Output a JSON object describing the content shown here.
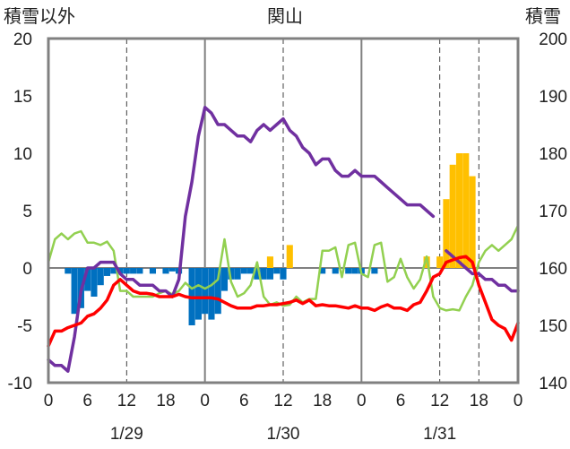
{
  "chart_data": {
    "type": "bar+line",
    "title": "関山",
    "left_axis": {
      "label": "積雪以外",
      "range": [
        -10,
        20
      ],
      "ticks": [
        "20",
        "15",
        "10",
        "5",
        "0",
        "-5",
        "-10"
      ],
      "values": [
        20,
        15,
        10,
        5,
        0,
        -5,
        -10
      ]
    },
    "right_axis": {
      "label": "積雪",
      "range": [
        140,
        200
      ],
      "ticks": [
        "200",
        "190",
        "180",
        "170",
        "160",
        "150",
        "140"
      ],
      "values": [
        200,
        190,
        180,
        170,
        160,
        150,
        140
      ]
    },
    "x_ticks": [
      {
        "h": 0,
        "label": "0"
      },
      {
        "h": 6,
        "label": "6"
      },
      {
        "h": 12,
        "label": "12"
      },
      {
        "h": 18,
        "label": "18"
      },
      {
        "h": 24,
        "label": "0"
      },
      {
        "h": 30,
        "label": "6"
      },
      {
        "h": 36,
        "label": "12"
      },
      {
        "h": 42,
        "label": "18"
      },
      {
        "h": 48,
        "label": "0"
      },
      {
        "h": 54,
        "label": "6"
      },
      {
        "h": 60,
        "label": "12"
      },
      {
        "h": 66,
        "label": "18"
      },
      {
        "h": 72,
        "label": "0"
      }
    ],
    "dates": [
      {
        "h": 12,
        "label": "1/29"
      },
      {
        "h": 36,
        "label": "1/30"
      },
      {
        "h": 60,
        "label": "1/31"
      }
    ],
    "x_range": [
      0,
      72
    ],
    "grid": {
      "vertical_dashed_hours": [
        12,
        36,
        60,
        66
      ],
      "vertical_solid_hours": [
        24,
        48
      ],
      "horizontal_zero_line": true
    },
    "colors": {
      "temperature": "#ff0000",
      "snow_depth": "#7030a0",
      "wind": "#92d050",
      "snow_change_negative": "#0070c0",
      "snow_change_positive": "#ffc000",
      "frame": "#808080"
    },
    "series": [
      {
        "key": "snow_change",
        "type": "bar",
        "axis": "left",
        "values": [
          [
            3,
            -0.5
          ],
          [
            4,
            -4
          ],
          [
            5,
            -3.5
          ],
          [
            6,
            -2
          ],
          [
            7,
            -2.5
          ],
          [
            8,
            -1.5
          ],
          [
            9,
            -0.7
          ],
          [
            10,
            -0.5
          ],
          [
            11,
            -0.5
          ],
          [
            12,
            -0.5
          ],
          [
            13,
            -0.5
          ],
          [
            14,
            -0.5
          ],
          [
            16,
            -0.5
          ],
          [
            18,
            -0.5
          ],
          [
            19,
            -0.3
          ],
          [
            20,
            -0.5
          ],
          [
            22,
            -5
          ],
          [
            23,
            -4.5
          ],
          [
            24,
            -4
          ],
          [
            25,
            -4.5
          ],
          [
            26,
            -4
          ],
          [
            27,
            -2
          ],
          [
            28,
            -1
          ],
          [
            29,
            -1
          ],
          [
            30,
            -0.5
          ],
          [
            31,
            -0.5
          ],
          [
            32,
            -1
          ],
          [
            33,
            -1
          ],
          [
            34,
            -1
          ],
          [
            35,
            -0.5
          ],
          [
            36,
            -1
          ],
          [
            42,
            -0.5
          ],
          [
            44,
            -0.5
          ],
          [
            46,
            -0.5
          ],
          [
            47,
            -0.5
          ],
          [
            48,
            -0.5
          ],
          [
            50,
            -0.5
          ],
          [
            34,
            1
          ],
          [
            37,
            2
          ],
          [
            58,
            1
          ],
          [
            60,
            1
          ],
          [
            61,
            6
          ],
          [
            62,
            9
          ],
          [
            63,
            10
          ],
          [
            64,
            10
          ],
          [
            65,
            8
          ]
        ]
      },
      {
        "key": "snow_depth",
        "type": "line",
        "axis": "right",
        "values": [
          [
            0,
            144
          ],
          [
            1,
            143
          ],
          [
            2,
            143
          ],
          [
            3,
            142
          ],
          [
            4,
            148
          ],
          [
            5,
            156
          ],
          [
            6,
            160
          ],
          [
            7,
            160
          ],
          [
            8,
            161
          ],
          [
            9,
            161
          ],
          [
            10,
            161
          ],
          [
            11,
            159
          ],
          [
            12,
            158
          ],
          [
            13,
            158
          ],
          [
            14,
            157
          ],
          [
            15,
            157
          ],
          [
            16,
            157
          ],
          [
            17,
            156
          ],
          [
            18,
            156
          ],
          [
            19,
            155
          ],
          [
            20,
            158
          ],
          [
            21,
            169
          ],
          [
            22,
            175
          ],
          [
            23,
            183
          ],
          [
            24,
            188
          ],
          [
            25,
            187
          ],
          [
            26,
            185
          ],
          [
            27,
            185
          ],
          [
            28,
            184
          ],
          [
            29,
            183
          ],
          [
            30,
            183
          ],
          [
            31,
            182
          ],
          [
            32,
            184
          ],
          [
            33,
            185
          ],
          [
            34,
            184
          ],
          [
            35,
            185
          ],
          [
            36,
            186
          ],
          [
            37,
            184
          ],
          [
            38,
            183
          ],
          [
            39,
            181
          ],
          [
            40,
            180
          ],
          [
            41,
            178
          ],
          [
            42,
            179
          ],
          [
            43,
            179
          ],
          [
            44,
            177
          ],
          [
            45,
            176
          ],
          [
            46,
            176
          ],
          [
            47,
            177
          ],
          [
            48,
            176
          ],
          [
            49,
            176
          ],
          [
            50,
            176
          ],
          [
            51,
            175
          ],
          [
            52,
            174
          ],
          [
            53,
            173
          ],
          [
            54,
            172
          ],
          [
            55,
            171
          ],
          [
            56,
            171
          ],
          [
            57,
            171
          ],
          [
            58,
            170
          ],
          [
            59,
            169
          ],
          [
            61,
            163
          ],
          [
            62,
            162
          ],
          [
            63,
            161
          ],
          [
            64,
            160
          ],
          [
            65,
            159
          ],
          [
            66,
            159
          ],
          [
            67,
            158
          ],
          [
            68,
            158
          ],
          [
            69,
            157
          ],
          [
            70,
            157
          ],
          [
            71,
            156
          ],
          [
            72,
            156
          ]
        ]
      },
      {
        "key": "temperature",
        "type": "line",
        "axis": "left",
        "values": [
          [
            0,
            -6.8
          ],
          [
            1,
            -5.5
          ],
          [
            2,
            -5.5
          ],
          [
            3,
            -5.2
          ],
          [
            4,
            -5
          ],
          [
            5,
            -4.8
          ],
          [
            6,
            -4.2
          ],
          [
            7,
            -4
          ],
          [
            8,
            -3.5
          ],
          [
            9,
            -2.8
          ],
          [
            10,
            -1.5
          ],
          [
            11,
            -1
          ],
          [
            12,
            -1.5
          ],
          [
            13,
            -2
          ],
          [
            14,
            -2.2
          ],
          [
            15,
            -2.2
          ],
          [
            16,
            -2.3
          ],
          [
            17,
            -2.5
          ],
          [
            18,
            -2.5
          ],
          [
            19,
            -2.5
          ],
          [
            20,
            -2.3
          ],
          [
            21,
            -2.5
          ],
          [
            22,
            -2.6
          ],
          [
            23,
            -2.6
          ],
          [
            24,
            -2.6
          ],
          [
            25,
            -2.6
          ],
          [
            26,
            -2.7
          ],
          [
            27,
            -3
          ],
          [
            28,
            -3.3
          ],
          [
            29,
            -3.5
          ],
          [
            30,
            -3.5
          ],
          [
            31,
            -3.5
          ],
          [
            32,
            -3.3
          ],
          [
            33,
            -3.3
          ],
          [
            34,
            -3.2
          ],
          [
            35,
            -3.2
          ],
          [
            36,
            -3.1
          ],
          [
            37,
            -3
          ],
          [
            38,
            -2.8
          ],
          [
            39,
            -3.1
          ],
          [
            40,
            -2.8
          ],
          [
            41,
            -3.3
          ],
          [
            42,
            -3.2
          ],
          [
            43,
            -3.3
          ],
          [
            44,
            -3.3
          ],
          [
            45,
            -3.4
          ],
          [
            46,
            -3.5
          ],
          [
            47,
            -3.3
          ],
          [
            48,
            -3.5
          ],
          [
            49,
            -3.5
          ],
          [
            50,
            -3.7
          ],
          [
            51,
            -3.4
          ],
          [
            52,
            -3.2
          ],
          [
            53,
            -3.5
          ],
          [
            54,
            -3.5
          ],
          [
            55,
            -3.7
          ],
          [
            56,
            -3.2
          ],
          [
            57,
            -3
          ],
          [
            58,
            -2
          ],
          [
            59,
            -0.8
          ],
          [
            60,
            -0.5
          ],
          [
            61,
            0.5
          ],
          [
            62,
            0.7
          ],
          [
            63,
            0.9
          ],
          [
            64,
            1
          ],
          [
            65,
            0.5
          ],
          [
            66,
            -1.5
          ],
          [
            67,
            -3
          ],
          [
            68,
            -4.5
          ],
          [
            69,
            -5
          ],
          [
            70,
            -5.3
          ],
          [
            71,
            -6.3
          ],
          [
            72,
            -4.8
          ]
        ]
      },
      {
        "key": "wind",
        "type": "line",
        "axis": "left",
        "values": [
          [
            0,
            0.5
          ],
          [
            1,
            2.5
          ],
          [
            2,
            3
          ],
          [
            3,
            2.5
          ],
          [
            4,
            3
          ],
          [
            5,
            3.2
          ],
          [
            6,
            2.2
          ],
          [
            7,
            2.2
          ],
          [
            8,
            2
          ],
          [
            9,
            2.3
          ],
          [
            10,
            1.5
          ],
          [
            11,
            -2
          ],
          [
            12,
            -2
          ],
          [
            13,
            -2.5
          ],
          [
            14,
            -2.5
          ],
          [
            15,
            -2.5
          ],
          [
            16,
            -2.5
          ],
          [
            17,
            -2.2
          ],
          [
            18,
            -2
          ],
          [
            19,
            -2.3
          ],
          [
            20,
            -2
          ],
          [
            21,
            -1.3
          ],
          [
            22,
            -1.8
          ],
          [
            23,
            -1.5
          ],
          [
            24,
            -1.8
          ],
          [
            25,
            -1.5
          ],
          [
            26,
            -1
          ],
          [
            27,
            2.5
          ],
          [
            28,
            -1.2
          ],
          [
            29,
            -2.5
          ],
          [
            30,
            -2.2
          ],
          [
            31,
            -1.5
          ],
          [
            32,
            0.5
          ],
          [
            33,
            -2.5
          ],
          [
            34,
            -3.2
          ],
          [
            35,
            -3
          ],
          [
            36,
            -3.3
          ],
          [
            37,
            -3.2
          ],
          [
            38,
            -2.5
          ],
          [
            39,
            -3
          ],
          [
            40,
            -2.7
          ],
          [
            41,
            -2.7
          ],
          [
            42,
            1.5
          ],
          [
            43,
            1.5
          ],
          [
            44,
            1.8
          ],
          [
            45,
            -0.8
          ],
          [
            46,
            2
          ],
          [
            47,
            2.2
          ],
          [
            48,
            -0.5
          ],
          [
            49,
            -0.8
          ],
          [
            50,
            2
          ],
          [
            51,
            2.2
          ],
          [
            52,
            -1.2
          ],
          [
            53,
            -0.8
          ],
          [
            54,
            0.8
          ],
          [
            55,
            -0.8
          ],
          [
            56,
            -1.8
          ],
          [
            57,
            -1
          ],
          [
            58,
            1
          ],
          [
            59,
            -2.5
          ],
          [
            60,
            -3.5
          ],
          [
            61,
            -3.7
          ],
          [
            62,
            -3.6
          ],
          [
            63,
            -3.7
          ],
          [
            64,
            -2.5
          ],
          [
            65,
            -1.5
          ],
          [
            66,
            0.5
          ],
          [
            67,
            1.5
          ],
          [
            68,
            2
          ],
          [
            69,
            1.5
          ],
          [
            70,
            2
          ],
          [
            71,
            2.5
          ],
          [
            72,
            3.7
          ]
        ]
      }
    ]
  }
}
